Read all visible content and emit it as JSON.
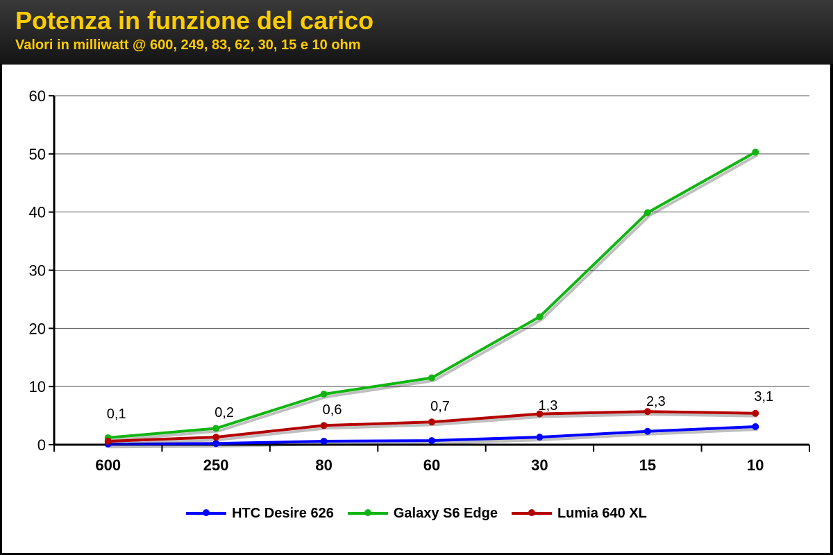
{
  "header": {
    "title": "Potenza in funzione del carico",
    "subtitle": "Valori in milliwatt @ 600, 249, 83, 62, 30, 15 e 10 ohm"
  },
  "chart_data": {
    "type": "line",
    "categories": [
      "600",
      "250",
      "80",
      "60",
      "30",
      "15",
      "10"
    ],
    "ylim": [
      0,
      60
    ],
    "yticks": [
      0,
      10,
      20,
      30,
      40,
      50,
      60
    ],
    "grid": true,
    "legend_position": "bottom",
    "series": [
      {
        "name": "HTC Desire 626",
        "color": "#0000ff",
        "values": [
          0.1,
          0.2,
          0.6,
          0.7,
          1.3,
          2.3,
          3.1
        ],
        "labels": [
          "0,1",
          "0,2",
          "0,6",
          "0,7",
          "1,3",
          "2,3",
          "3,1"
        ]
      },
      {
        "name": "Galaxy S6 Edge",
        "color": "#11b511",
        "values": [
          1.2,
          2.8,
          8.7,
          11.5,
          22.0,
          39.9,
          50.3
        ]
      },
      {
        "name": "Lumia 640 XL",
        "color": "#b50000",
        "values": [
          0.6,
          1.3,
          3.3,
          3.9,
          5.3,
          5.7,
          5.4
        ]
      }
    ]
  }
}
